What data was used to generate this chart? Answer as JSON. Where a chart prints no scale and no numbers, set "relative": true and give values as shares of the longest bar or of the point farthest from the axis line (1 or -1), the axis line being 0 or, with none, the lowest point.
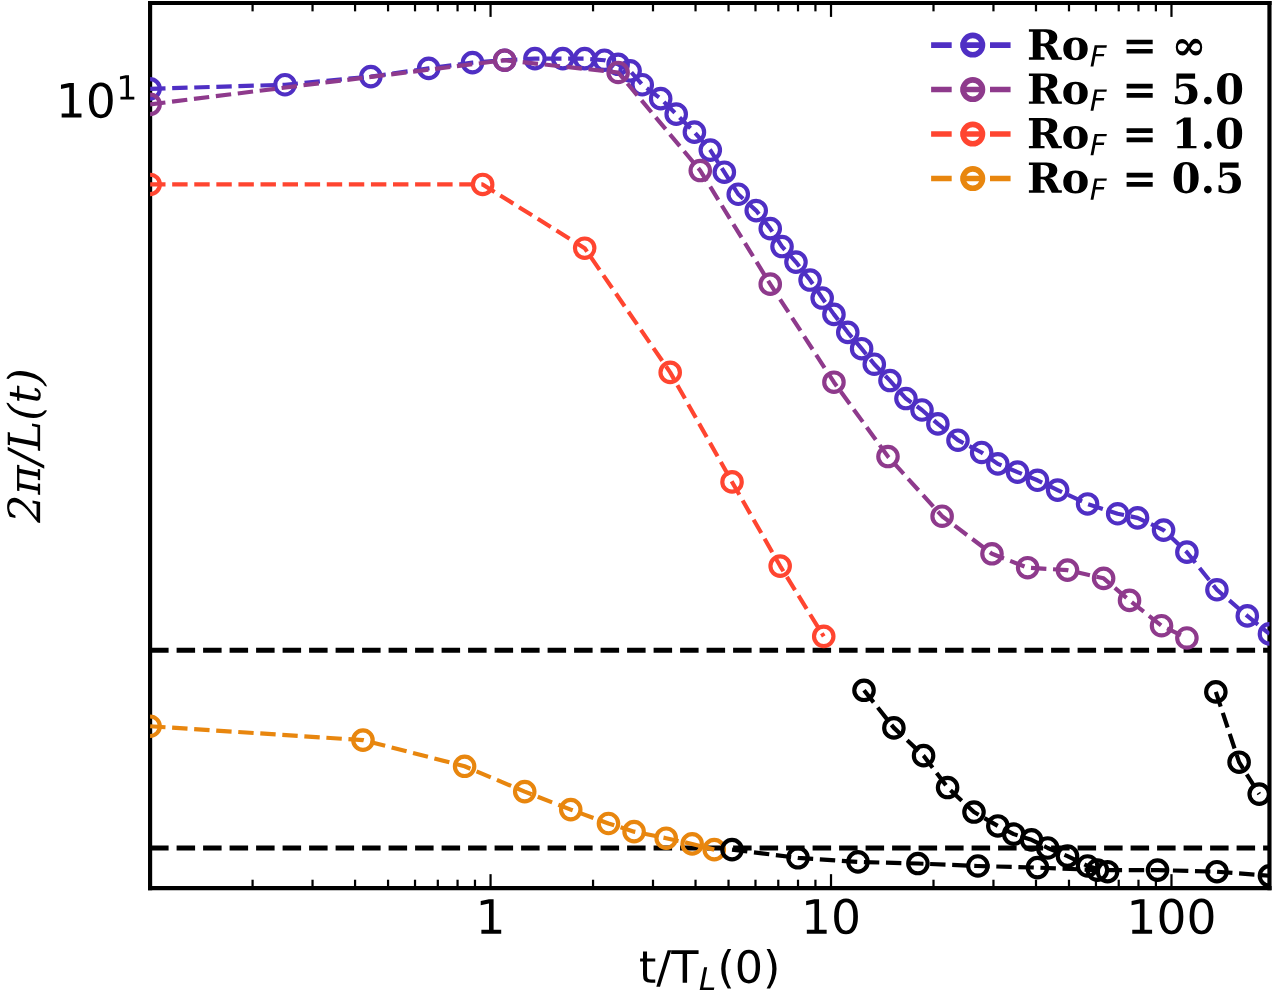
{
  "chart_data": {
    "type": "line",
    "relative": true,
    "xlabel": "t/T$_{L}$(0)",
    "ylabel": "2π/L(t)",
    "log": "x",
    "marker": "circle",
    "line_style": "dashed",
    "legend": "top right",
    "grid": false,
    "annotations": [
      "10$^{1}$"
    ],
    "xlim": [
      0.1,
      194
    ],
    "xticks": [
      {
        "value": 0.2,
        "label": null
      },
      {
        "value": 0.3,
        "label": null
      },
      {
        "value": 0.4,
        "label": null
      },
      {
        "value": 0.5,
        "label": null
      },
      {
        "value": 0.6,
        "label": null
      },
      {
        "value": 0.7,
        "label": null
      },
      {
        "value": 0.8,
        "label": null
      },
      {
        "value": 0.9,
        "label": null
      },
      1,
      {
        "value": 2,
        "label": null
      },
      {
        "value": 3,
        "label": null
      },
      {
        "value": 4,
        "label": null
      },
      {
        "value": 5,
        "label": null
      },
      {
        "value": 6,
        "label": null
      },
      {
        "value": 7,
        "label": null
      },
      {
        "value": 8,
        "label": null
      },
      {
        "value": 9,
        "label": null
      },
      10,
      {
        "value": 20,
        "label": null
      },
      {
        "value": 30,
        "label": null
      },
      {
        "value": 40,
        "label": null
      },
      {
        "value": 50,
        "label": null
      },
      {
        "value": 60,
        "label": null
      },
      {
        "value": 70,
        "label": null
      },
      {
        "value": 80,
        "label": null
      },
      {
        "value": 90,
        "label": null
      },
      100
    ],
    "ref_lines": [
      {
        "axis": "y",
        "value": 0.276,
        "label": null,
        "color": "#000000",
        "line_style": "dashed"
      },
      {
        "axis": "y",
        "value": 0.034,
        "label": null,
        "color": "#000000",
        "line_style": "dashed"
      }
    ],
    "series": [
      {
        "name": "Ro$_{F}$ = ∞",
        "color": "#4f2fc4",
        "x": [
          0.1,
          0.249,
          0.445,
          0.658,
          0.885,
          1.1,
          1.35,
          1.63,
          1.89,
          2.16,
          2.37,
          2.57,
          2.79,
          3.16,
          3.51,
          3.97,
          4.42,
          4.86,
          5.34,
          6.03,
          6.63,
          7.18,
          7.89,
          8.68,
          9.42,
          10.2,
          11.2,
          12.3,
          13.4,
          14.9,
          16.6,
          18.5,
          20.6,
          23.6,
          27.7,
          30.9,
          35.3,
          40.4,
          46.3,
          56.7,
          69.5,
          79.5,
          94.8,
          111,
          136,
          167,
          194
        ],
        "values": [
          0.963,
          0.968,
          0.978,
          0.988,
          0.995,
          0.998,
          1,
          1,
          1,
          0.998,
          0.993,
          0.985,
          0.968,
          0.951,
          0.932,
          0.91,
          0.888,
          0.861,
          0.834,
          0.814,
          0.792,
          0.77,
          0.751,
          0.729,
          0.707,
          0.687,
          0.665,
          0.645,
          0.626,
          0.606,
          0.584,
          0.57,
          0.553,
          0.533,
          0.518,
          0.504,
          0.494,
          0.484,
          0.472,
          0.455,
          0.443,
          0.438,
          0.423,
          0.396,
          0.35,
          0.318,
          0.296
        ]
      },
      {
        "name": "Ro$_{F}$ = 5.0",
        "color": "#8e3a8c",
        "x": [
          0.1,
          1.1,
          2.37,
          4.13,
          6.63,
          10.2,
          14.7,
          21.2,
          29.7,
          37.8,
          49.5,
          63.2,
          75.3,
          93.5,
          111
        ],
        "values": [
          0.944,
          0.998,
          0.983,
          0.863,
          0.724,
          0.604,
          0.513,
          0.44,
          0.394,
          0.377,
          0.374,
          0.364,
          0.337,
          0.306,
          0.291
        ]
      },
      {
        "name": "Ro$_{F}$ = 1.0",
        "color": "#ff4530",
        "x": [
          0.1,
          0.948,
          1.89,
          3.37,
          5.12,
          7.09,
          9.52
        ],
        "values": [
          0.846,
          0.846,
          0.768,
          0.616,
          0.482,
          0.379,
          0.293
        ]
      },
      {
        "name": "Ro$_{F}$ = 0.5",
        "color": "#e8860e",
        "x": [
          0.1,
          0.422,
          0.839,
          1.26,
          1.72,
          2.22,
          2.64,
          3.28,
          3.91,
          4.54
        ],
        "values": [
          0.183,
          0.166,
          0.134,
          0.103,
          0.081,
          0.064,
          0.054,
          0.046,
          0.039,
          0.032
        ]
      },
      {
        "color": "#000000",
        "x": [
          5.12,
          8.0,
          12.0,
          18.0,
          27.0,
          40.4,
          60.6,
          91.0,
          136,
          194
        ],
        "values": [
          0.032,
          0.022,
          0.017,
          0.015,
          0.012,
          0.01,
          0.007,
          0.007,
          0.005,
          0
        ]
      },
      {
        "color": "#000000",
        "x": [
          12.5,
          15.3,
          18.7,
          22.0,
          26.3,
          30.9,
          34.4,
          38.8,
          43.3,
          49.5,
          56.7,
          64.9
        ],
        "values": [
          0.227,
          0.181,
          0.147,
          0.108,
          0.078,
          0.061,
          0.051,
          0.044,
          0.034,
          0.024,
          0.012,
          0.005
        ]
      },
      {
        "color": "#000000",
        "x": [
          135,
          158,
          181
        ],
        "values": [
          0.225,
          0.139,
          0.1
        ]
      }
    ]
  }
}
